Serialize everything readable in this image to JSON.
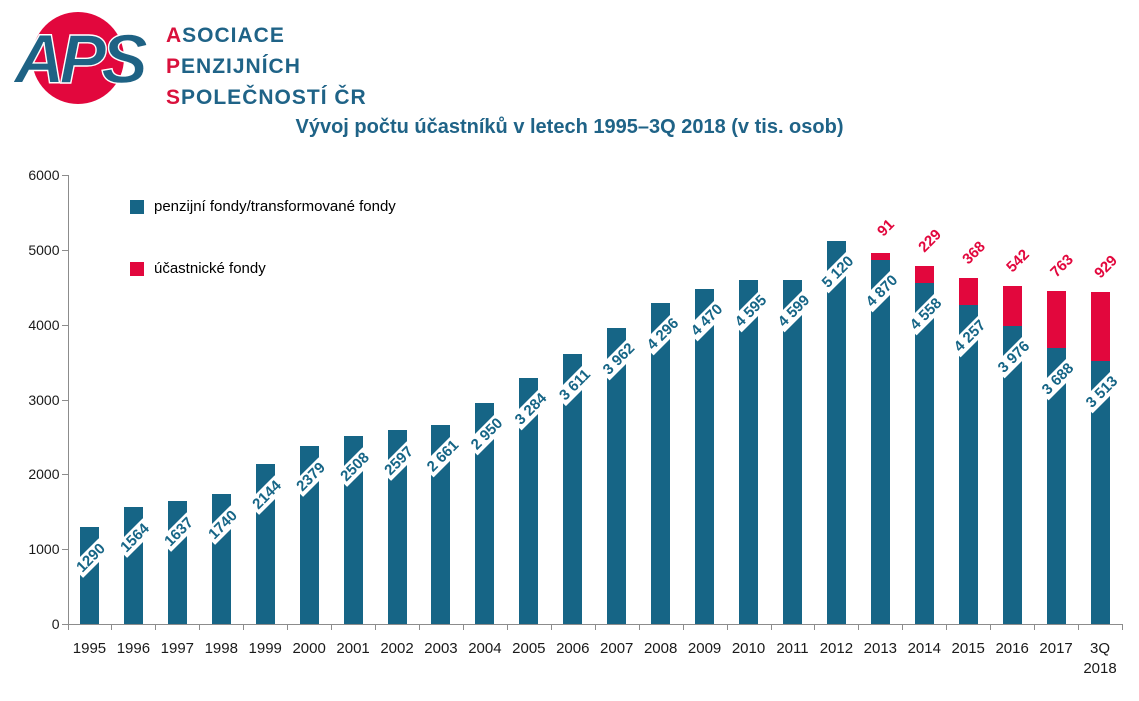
{
  "logo": {
    "acronym": "APS",
    "org_lines": [
      {
        "initial": "A",
        "rest": "SOCIACE"
      },
      {
        "initial": "P",
        "rest": "ENZIJNÍCH"
      },
      {
        "initial": "S",
        "rest": "POLEČNOSTÍ ČR"
      }
    ],
    "colors": {
      "circle_red": "#E2073D",
      "letters_teal": "#1E6284"
    }
  },
  "chart_data": {
    "type": "bar",
    "stacked": true,
    "title": "Vývoj počtu účastníků v letech 1995–3Q 2018 (v tis. osob)",
    "categories": [
      "1995",
      "1996",
      "1997",
      "1998",
      "1999",
      "2000",
      "2001",
      "2002",
      "2003",
      "2004",
      "2005",
      "2006",
      "2007",
      "2008",
      "2009",
      "2010",
      "2011",
      "2012",
      "2013",
      "2014",
      "2015",
      "2016",
      "2017",
      "3Q\n2018"
    ],
    "series": [
      {
        "name": "penzijní fondy/transformované fondy",
        "color": "#166586",
        "values": [
          1290,
          1564,
          1637,
          1740,
          2144,
          2379,
          2508,
          2597,
          2661,
          2950,
          3284,
          3611,
          3962,
          4296,
          4470,
          4595,
          4599,
          5120,
          4870,
          4558,
          4257,
          3976,
          3688,
          3513
        ],
        "labels": [
          "1290",
          "1564",
          "1637",
          "1740",
          "2144",
          "2379",
          "2508",
          "2597",
          "2 661",
          "2 950",
          "3 284",
          "3 611",
          "3 962",
          "4 296",
          "4 470",
          "4 595",
          "4 599",
          "5 120",
          "4 870",
          "4 558",
          "4 257",
          "3 976",
          "3 688",
          "3 513"
        ]
      },
      {
        "name": "účastnické fondy",
        "color": "#E2073D",
        "values": [
          0,
          0,
          0,
          0,
          0,
          0,
          0,
          0,
          0,
          0,
          0,
          0,
          0,
          0,
          0,
          0,
          0,
          0,
          91,
          229,
          368,
          542,
          763,
          929
        ],
        "labels": [
          "",
          "",
          "",
          "",
          "",
          "",
          "",
          "",
          "",
          "",
          "",
          "",
          "",
          "",
          "",
          "",
          "",
          "",
          "91",
          "229",
          "368",
          "542",
          "763",
          "929"
        ]
      }
    ],
    "ylim": [
      0,
      6000
    ],
    "yticks": [
      0,
      1000,
      2000,
      3000,
      4000,
      5000,
      6000
    ],
    "grid": false,
    "legend_position": "top-left-inside"
  }
}
